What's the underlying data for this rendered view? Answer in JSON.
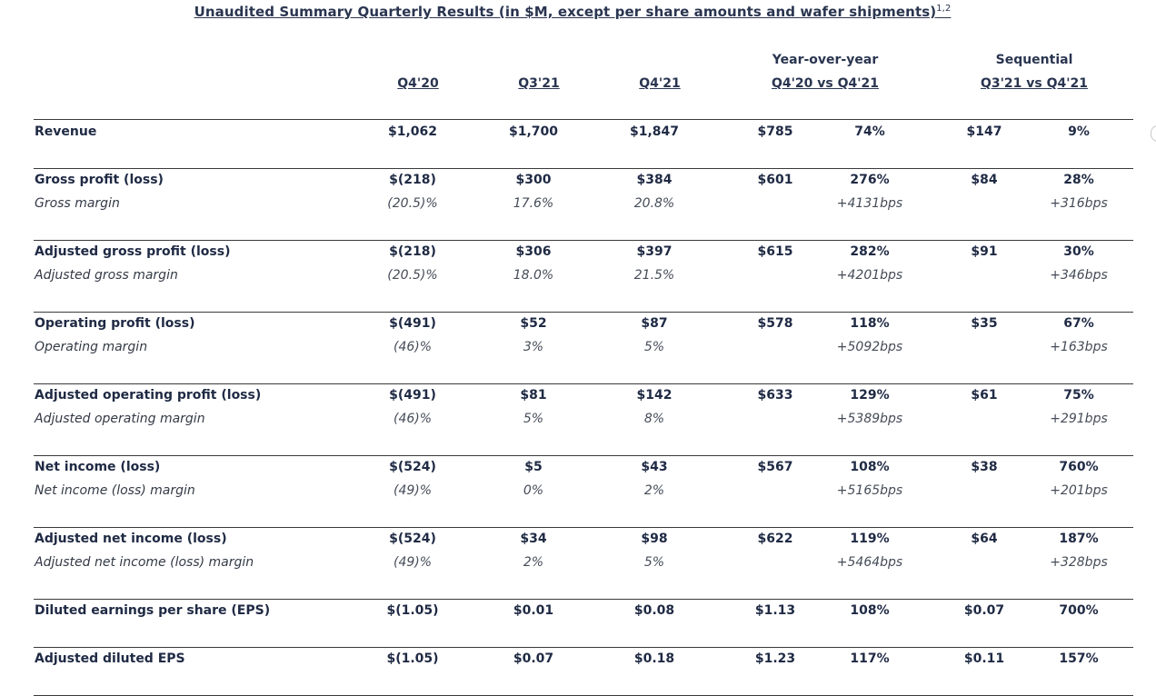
{
  "title": {
    "text": "Unaudited Summary Quarterly Results (in $M, except per share amounts and wafer shipments)",
    "superscript": "1,2"
  },
  "headers": {
    "yoy_label": "Year-over-year",
    "seq_label": "Sequential",
    "columns": [
      "Q4'20",
      "Q3'21",
      "Q4'21",
      "Q4'20 vs Q4'21",
      "Q3'21 vs Q4'21"
    ]
  },
  "rows": [
    {
      "label": "Revenue",
      "values": [
        "$1,062",
        "$1,700",
        "$1,847",
        "$785",
        "74%",
        "$147",
        "9%"
      ]
    },
    {
      "label": "Gross profit (loss)",
      "values": [
        "$(218)",
        "$300",
        "$384",
        "$601",
        "276%",
        "$84",
        "28%"
      ],
      "sub_label": "Gross margin",
      "sub_values": [
        "(20.5)%",
        "17.6%",
        "20.8%",
        "",
        "+4131bps",
        "",
        "+316bps"
      ]
    },
    {
      "label": "Adjusted gross profit (loss)",
      "values": [
        "$(218)",
        "$306",
        "$397",
        "$615",
        "282%",
        "$91",
        "30%"
      ],
      "sub_label": "Adjusted gross margin",
      "sub_values": [
        "(20.5)%",
        "18.0%",
        "21.5%",
        "",
        "+4201bps",
        "",
        "+346bps"
      ]
    },
    {
      "label": "Operating profit (loss)",
      "values": [
        "$(491)",
        "$52",
        "$87",
        "$578",
        "118%",
        "$35",
        "67%"
      ],
      "sub_label": "Operating margin",
      "sub_values": [
        "(46)%",
        "3%",
        "5%",
        "",
        "+5092bps",
        "",
        "+163bps"
      ]
    },
    {
      "label": "Adjusted operating profit (loss)",
      "values": [
        "$(491)",
        "$81",
        "$142",
        "$633",
        "129%",
        "$61",
        "75%"
      ],
      "sub_label": "Adjusted operating margin",
      "sub_values": [
        "(46)%",
        "5%",
        "8%",
        "",
        "+5389bps",
        "",
        "+291bps"
      ]
    },
    {
      "label": "Net income (loss)",
      "values": [
        "$(524)",
        "$5",
        "$43",
        "$567",
        "108%",
        "$38",
        "760%"
      ],
      "sub_label": "Net income (loss) margin",
      "sub_values": [
        "(49)%",
        "0%",
        "2%",
        "",
        "+5165bps",
        "",
        "+201bps"
      ]
    },
    {
      "label": "Adjusted net income (loss)",
      "values": [
        "$(524)",
        "$34",
        "$98",
        "$622",
        "119%",
        "$64",
        "187%"
      ],
      "sub_label": "Adjusted net income (loss) margin",
      "sub_values": [
        "(49)%",
        "2%",
        "5%",
        "",
        "+5464bps",
        "",
        "+328bps"
      ]
    },
    {
      "label": "Diluted earnings per share (EPS)",
      "values": [
        "$(1.05)",
        "$0.01",
        "$0.08",
        "$1.13",
        "108%",
        "$0.07",
        "700%"
      ]
    },
    {
      "label": "Adjusted diluted EPS",
      "values": [
        "$(1.05)",
        "$0.07",
        "$0.18",
        "$1.23",
        "117%",
        "$0.11",
        "157%"
      ]
    }
  ]
}
